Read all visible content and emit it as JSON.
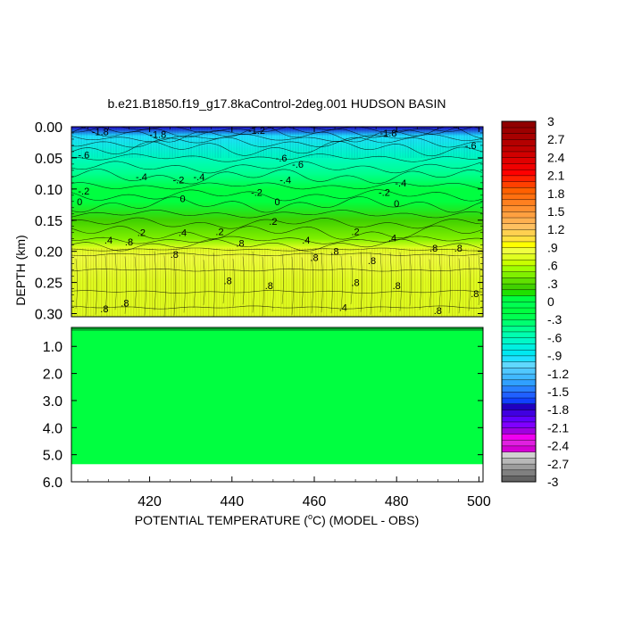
{
  "chart_data": {
    "type": "heatmap",
    "title": "b.e21.B1850.f19_g17.8kaControl-2deg.001 HUDSON BASIN",
    "xlabel_prefix": "POTENTIAL TEMPERATURE (",
    "xlabel_degree": "o",
    "xlabel_suffix": "C) (MODEL - OBS)",
    "ylabel": "DEPTH (km)",
    "x_range": [
      401,
      501
    ],
    "x_ticks": [
      420,
      440,
      460,
      480,
      500
    ],
    "x_tick_labels": [
      "420",
      "440",
      "460",
      "480",
      "500"
    ],
    "upper_panel": {
      "y_range": [
        0.0,
        0.305
      ],
      "y_ticks": [
        0.0,
        0.05,
        0.1,
        0.15,
        0.2,
        0.25,
        0.3
      ],
      "y_tick_labels": [
        "0.00",
        "0.05",
        "0.10",
        "0.15",
        "0.20",
        "0.25",
        "0.30"
      ],
      "profile": [
        {
          "depth": 0.0,
          "value": -1.8
        },
        {
          "depth": 0.015,
          "value": -1.0
        },
        {
          "depth": 0.045,
          "value": -0.7
        },
        {
          "depth": 0.075,
          "value": -0.5
        },
        {
          "depth": 0.1,
          "value": -0.2
        },
        {
          "depth": 0.12,
          "value": 0.0
        },
        {
          "depth": 0.15,
          "value": 0.2
        },
        {
          "depth": 0.18,
          "value": 0.4
        },
        {
          "depth": 0.195,
          "value": 0.7
        },
        {
          "depth": 0.21,
          "value": 0.8
        },
        {
          "depth": 0.25,
          "value": 0.75
        },
        {
          "depth": 0.305,
          "value": 0.7
        }
      ],
      "contour_labels": [
        {
          "x": 408,
          "depth": 0.008,
          "text": "-1.8"
        },
        {
          "x": 446,
          "depth": 0.006,
          "text": "-1.2"
        },
        {
          "x": 422,
          "depth": 0.012,
          "text": "-1.8"
        },
        {
          "x": 478,
          "depth": 0.01,
          "text": "-1.8"
        },
        {
          "x": 404,
          "depth": 0.045,
          "text": "-.6"
        },
        {
          "x": 452,
          "depth": 0.05,
          "text": "-.6"
        },
        {
          "x": 456,
          "depth": 0.06,
          "text": "-.6"
        },
        {
          "x": 498,
          "depth": 0.03,
          "text": "-.6"
        },
        {
          "x": 418,
          "depth": 0.08,
          "text": "-.4"
        },
        {
          "x": 427,
          "depth": 0.085,
          "text": "-.2"
        },
        {
          "x": 432,
          "depth": 0.08,
          "text": "-.4"
        },
        {
          "x": 453,
          "depth": 0.085,
          "text": "-.4"
        },
        {
          "x": 404,
          "depth": 0.103,
          "text": "-.2"
        },
        {
          "x": 446,
          "depth": 0.105,
          "text": "-.2"
        },
        {
          "x": 477,
          "depth": 0.105,
          "text": "-.2"
        },
        {
          "x": 481,
          "depth": 0.09,
          "text": "-.4"
        },
        {
          "x": 403,
          "depth": 0.12,
          "text": "0"
        },
        {
          "x": 428,
          "depth": 0.115,
          "text": "0"
        },
        {
          "x": 451,
          "depth": 0.12,
          "text": "0"
        },
        {
          "x": 480,
          "depth": 0.123,
          "text": "0"
        },
        {
          "x": 450,
          "depth": 0.152,
          "text": ".2"
        },
        {
          "x": 410,
          "depth": 0.182,
          "text": ".4"
        },
        {
          "x": 418,
          "depth": 0.17,
          "text": ".2"
        },
        {
          "x": 428,
          "depth": 0.17,
          "text": ".4"
        },
        {
          "x": 437,
          "depth": 0.168,
          "text": ".2"
        },
        {
          "x": 458,
          "depth": 0.182,
          "text": ".4"
        },
        {
          "x": 470,
          "depth": 0.168,
          "text": ".2"
        },
        {
          "x": 479,
          "depth": 0.178,
          "text": ".4"
        },
        {
          "x": 415,
          "depth": 0.185,
          "text": ".8"
        },
        {
          "x": 442,
          "depth": 0.187,
          "text": ".8"
        },
        {
          "x": 426,
          "depth": 0.205,
          "text": ".8"
        },
        {
          "x": 460,
          "depth": 0.21,
          "text": ".8"
        },
        {
          "x": 474,
          "depth": 0.215,
          "text": ".8"
        },
        {
          "x": 489,
          "depth": 0.195,
          "text": ".8"
        },
        {
          "x": 495,
          "depth": 0.195,
          "text": ".8"
        },
        {
          "x": 465,
          "depth": 0.2,
          "text": ".8"
        },
        {
          "x": 439,
          "depth": 0.247,
          "text": ".8"
        },
        {
          "x": 449,
          "depth": 0.255,
          "text": ".8"
        },
        {
          "x": 470,
          "depth": 0.25,
          "text": ".8"
        },
        {
          "x": 480,
          "depth": 0.255,
          "text": ".8"
        },
        {
          "x": 499,
          "depth": 0.268,
          "text": ".8"
        },
        {
          "x": 414,
          "depth": 0.283,
          "text": ".8"
        },
        {
          "x": 409,
          "depth": 0.292,
          "text": ".8"
        },
        {
          "x": 467,
          "depth": 0.29,
          "text": ".4"
        },
        {
          "x": 490,
          "depth": 0.295,
          "text": ".8"
        }
      ]
    },
    "lower_panel": {
      "y_range": [
        0.3,
        6.0
      ],
      "y_ticks": [
        1.0,
        2.0,
        3.0,
        4.0,
        5.0,
        6.0
      ],
      "y_tick_labels": [
        "1.0",
        "2.0",
        "3.0",
        "4.0",
        "5.0",
        "6.0"
      ],
      "value": 0.0,
      "data_bottom_depth": 5.35
    },
    "colorbar": {
      "levels": [
        -3,
        -2.9,
        -2.8,
        -2.7,
        -2.6,
        -2.5,
        -2.4,
        -2.3,
        -2.2,
        -2.1,
        -2.0,
        -1.9,
        -1.8,
        -1.7,
        -1.6,
        -1.5,
        -1.4,
        -1.3,
        -1.2,
        -1.1,
        -1.0,
        -0.9,
        -0.8,
        -0.7,
        -0.6,
        -0.5,
        -0.4,
        -0.3,
        -0.2,
        -0.1,
        0.0,
        0.1,
        0.2,
        0.3,
        0.4,
        0.5,
        0.6,
        0.7,
        0.8,
        0.9,
        1.0,
        1.1,
        1.2,
        1.3,
        1.4,
        1.5,
        1.6,
        1.7,
        1.8,
        1.9,
        2.0,
        2.1,
        2.2,
        2.3,
        2.4,
        2.5,
        2.6,
        2.7,
        2.8,
        2.9,
        3.0
      ],
      "tick_labels": [
        "3",
        "2.7",
        "2.4",
        "2.1",
        "1.8",
        "1.5",
        "1.2",
        ".9",
        ".6",
        ".3",
        "0",
        "-.3",
        "-.6",
        "-.9",
        "-1.2",
        "-1.5",
        "-1.8",
        "-2.1",
        "-2.4",
        "-2.7",
        "-3"
      ],
      "colors": [
        "#646464",
        "#808080",
        "#9c9c9c",
        "#b8b8b8",
        "#d0d0d0",
        "#d400d4",
        "#e020e0",
        "#f000f0",
        "#a000e0",
        "#8000ff",
        "#6000ff",
        "#4000e0",
        "#2000c0",
        "#1040ff",
        "#2060ff",
        "#2880ff",
        "#30a0ff",
        "#40b8ff",
        "#50c8ff",
        "#60d8ff",
        "#20e0ff",
        "#00e8f0",
        "#00f0e0",
        "#00f8c8",
        "#00ffb0",
        "#00ff90",
        "#00ff70",
        "#00ff50",
        "#00ff40",
        "#00ff50",
        "#00ff40",
        "#20e000",
        "#40d000",
        "#60e000",
        "#80f000",
        "#a0ff00",
        "#c8ff00",
        "#e0ff20",
        "#f0ff40",
        "#ffff00",
        "#ffe040",
        "#ffd050",
        "#ffc060",
        "#ffb050",
        "#ffa040",
        "#ff9030",
        "#ff8020",
        "#ff7010",
        "#ff6000",
        "#ff4000",
        "#ff2000",
        "#ff0000",
        "#f00000",
        "#e00000",
        "#d00000",
        "#c00000",
        "#b40000",
        "#a80000",
        "#9c0000",
        "#900000"
      ]
    }
  }
}
